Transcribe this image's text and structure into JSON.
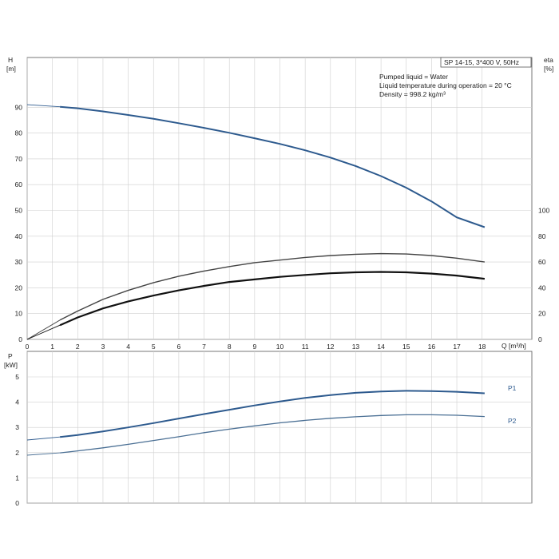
{
  "chart_data": [
    {
      "type": "line",
      "title": "SP 14-15, 3*400 V, 50Hz",
      "notes": [
        "Pumped liquid = Water",
        "Liquid temperature during operation = 20 °C",
        "Density = 998.2 kg/m³"
      ],
      "xlabel": "Q [m³/h]",
      "ylabel_left": [
        "H",
        "[m]"
      ],
      "ylabel_right": [
        "eta",
        "[%]"
      ],
      "xlim": [
        0,
        20
      ],
      "xticks": [
        0,
        1,
        2,
        3,
        4,
        5,
        6,
        7,
        8,
        9,
        10,
        11,
        12,
        13,
        14,
        15,
        16,
        17,
        18
      ],
      "ylim": [
        0,
        110
      ],
      "yticks": [
        0,
        10,
        20,
        30,
        40,
        50,
        60,
        70,
        80,
        90
      ],
      "y2lim": [
        0,
        110
      ],
      "y2ticks": [
        0,
        20,
        40,
        60,
        80,
        100
      ],
      "grid": true,
      "series": [
        {
          "name": "",
          "axis": "left",
          "color": "#2d5a8e",
          "x": [
            0,
            1.3,
            2,
            3,
            4,
            5,
            6,
            7,
            8,
            9,
            10,
            11,
            12,
            13,
            14,
            15,
            16,
            17,
            18.1
          ],
          "y": [
            91,
            90.2,
            89.6,
            88.4,
            87,
            85.5,
            83.8,
            82,
            80.1,
            78,
            75.8,
            73.3,
            70.5,
            67.2,
            63.3,
            58.8,
            53.5,
            47.3,
            43.5
          ],
          "dashed_segment_until": 1.3
        },
        {
          "name": "",
          "axis": "right",
          "color": "#444444",
          "x": [
            0,
            1.3,
            2,
            3,
            4,
            5,
            6,
            7,
            8,
            9,
            10,
            11,
            12,
            13,
            14,
            15,
            16,
            17,
            18.1
          ],
          "y": [
            0,
            15,
            22,
            31,
            38,
            44,
            49,
            53,
            56.5,
            59.5,
            61.5,
            63.5,
            65,
            66,
            66.5,
            66.2,
            65,
            63,
            60
          ],
          "dashed_segment_until": 1.3
        },
        {
          "name": "",
          "axis": "right",
          "color": "#111111",
          "x": [
            0,
            1.3,
            2,
            3,
            4,
            5,
            6,
            7,
            8,
            9,
            10,
            11,
            12,
            13,
            14,
            15,
            16,
            17,
            18.1
          ],
          "y": [
            0,
            11,
            17,
            24,
            29.5,
            34,
            38,
            41.5,
            44.5,
            46.5,
            48.5,
            50,
            51.3,
            52,
            52.3,
            52,
            51,
            49.5,
            47
          ],
          "dashed_segment_until": 1.3
        }
      ]
    },
    {
      "type": "line",
      "xlabel": "",
      "ylabel": [
        "P",
        "[kW]"
      ],
      "xlim": [
        0,
        20
      ],
      "xticks": [
        0,
        1,
        2,
        3,
        4,
        5,
        6,
        7,
        8,
        9,
        10,
        11,
        12,
        13,
        14,
        15,
        16,
        17,
        18
      ],
      "ylim": [
        0,
        5.5
      ],
      "yticks": [
        0,
        1,
        2,
        3,
        4,
        5
      ],
      "grid": true,
      "series": [
        {
          "name": "P1",
          "color": "#2d5a8e",
          "x": [
            0,
            1.3,
            2,
            3,
            4,
            5,
            6,
            7,
            8,
            9,
            10,
            11,
            12,
            13,
            14,
            15,
            16,
            17,
            18.1
          ],
          "y": [
            2.5,
            2.62,
            2.7,
            2.84,
            3.0,
            3.17,
            3.35,
            3.53,
            3.7,
            3.87,
            4.03,
            4.17,
            4.28,
            4.37,
            4.42,
            4.45,
            4.44,
            4.41,
            4.35
          ],
          "dashed_segment_until": 1.3
        },
        {
          "name": "P2",
          "color": "#4a6f94",
          "x": [
            0,
            1.3,
            2,
            3,
            4,
            5,
            6,
            7,
            8,
            9,
            10,
            11,
            12,
            13,
            14,
            15,
            16,
            17,
            18.1
          ],
          "y": [
            1.9,
            1.99,
            2.07,
            2.19,
            2.33,
            2.48,
            2.63,
            2.79,
            2.93,
            3.06,
            3.18,
            3.28,
            3.36,
            3.42,
            3.47,
            3.5,
            3.5,
            3.48,
            3.43
          ],
          "dashed_segment_until": 1.3
        }
      ]
    }
  ]
}
